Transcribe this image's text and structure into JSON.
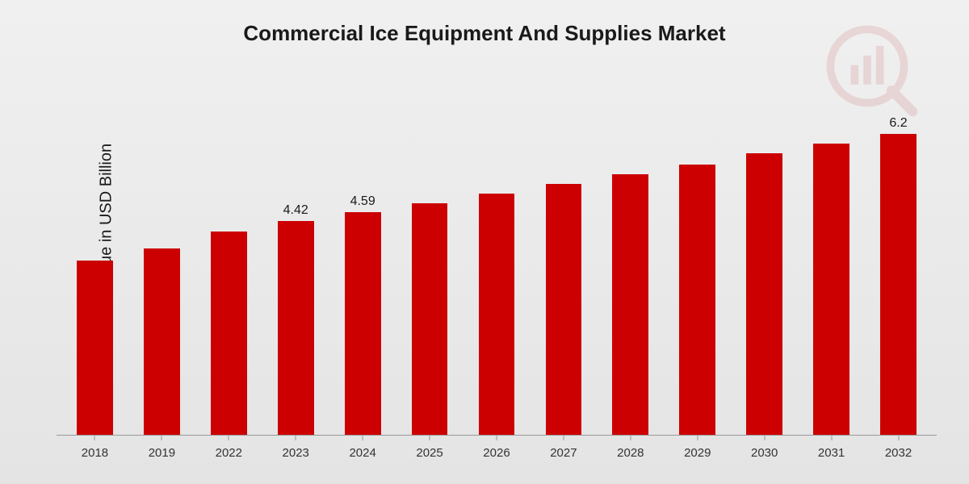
{
  "title": "Commercial Ice Equipment And Supplies Market",
  "ylabel": "Market Value in USD Billion",
  "chart": {
    "type": "bar",
    "categories": [
      "2018",
      "2019",
      "2022",
      "2023",
      "2024",
      "2025",
      "2026",
      "2027",
      "2028",
      "2029",
      "2030",
      "2031",
      "2032"
    ],
    "values": [
      3.6,
      3.85,
      4.2,
      4.42,
      4.59,
      4.78,
      4.98,
      5.18,
      5.38,
      5.58,
      5.8,
      6.0,
      6.2
    ],
    "value_labels": [
      "",
      "",
      "",
      "4.42",
      "4.59",
      "",
      "",
      "",
      "",
      "",
      "",
      "",
      "6.2"
    ],
    "bar_color": "#cc0000",
    "ylim": [
      0,
      6.8
    ],
    "background_gradient": [
      "#f0f0f0",
      "#e4e4e4"
    ],
    "title_fontsize": 26,
    "ylabel_fontsize": 20,
    "xlabel_fontsize": 15,
    "value_label_fontsize": 16,
    "bar_width_ratio": 0.54,
    "baseline_color": "#999999",
    "text_color": "#1a1a1a",
    "watermark_color": "#b30000"
  }
}
